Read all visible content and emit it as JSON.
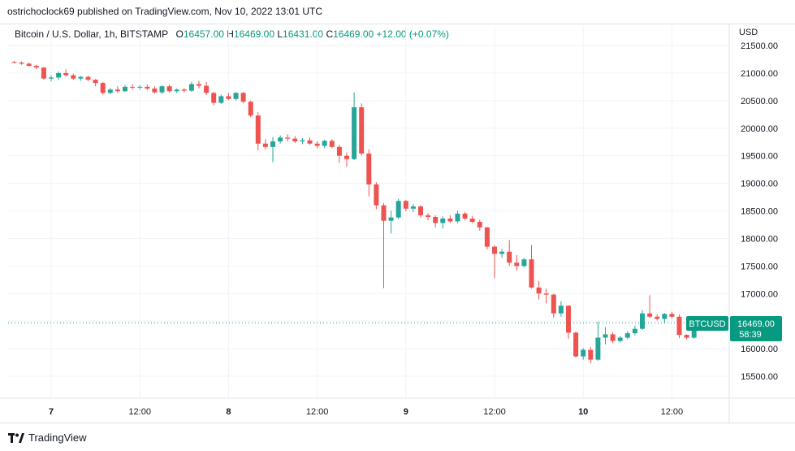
{
  "header": {
    "published": "ostrichoclock69 published on TradingView.com, Nov 10, 2022 13:01 UTC"
  },
  "legend": {
    "symbol": "Bitcoin / U.S. Dollar, 1h, BITSTAMP",
    "open_label": "O",
    "open": "16457.00",
    "high_label": "H",
    "high": "16469.00",
    "low_label": "L",
    "low": "16431.00",
    "close_label": "C",
    "close": "16469.00",
    "change": "+12.00 (+0.07%)"
  },
  "axis": {
    "currency": "USD"
  },
  "price_tag": {
    "symbol": "BTCUSD",
    "price": "16469.00",
    "countdown": "58:39"
  },
  "footer": {
    "brand": "TradingView"
  },
  "colors": {
    "up": "#26a69a",
    "down": "#ef5350",
    "grid": "#f0f3fa",
    "tag": "#089981"
  },
  "chart_data": {
    "type": "candlestick",
    "interval": "1h",
    "y_ticks": [
      15500,
      16000,
      16500,
      17000,
      17500,
      18000,
      18500,
      19000,
      19500,
      20000,
      20500,
      21000,
      21500
    ],
    "y_tick_labels": [
      "15500.00",
      "16000.00",
      "16500.00",
      "17000.00",
      "17500.00",
      "18000.00",
      "18500.00",
      "19000.00",
      "19500.00",
      "20000.00",
      "20500.00",
      "21000.00",
      "21500.00"
    ],
    "x_ticks": [
      {
        "label": "7",
        "i": 5
      },
      {
        "label": "12:00",
        "i": 17
      },
      {
        "label": "8",
        "i": 29
      },
      {
        "label": "12:00",
        "i": 41
      },
      {
        "label": "9",
        "i": 53
      },
      {
        "label": "12:00",
        "i": 65
      },
      {
        "label": "10",
        "i": 77
      },
      {
        "label": "12:00",
        "i": 89
      }
    ],
    "current_price": 16469,
    "candles": [
      [
        21200,
        21220,
        21180,
        21190
      ],
      [
        21190,
        21210,
        21150,
        21170
      ],
      [
        21170,
        21190,
        21120,
        21130
      ],
      [
        21130,
        21150,
        21070,
        21100
      ],
      [
        21100,
        21110,
        20880,
        20900
      ],
      [
        20900,
        20960,
        20850,
        20920
      ],
      [
        20920,
        21030,
        20870,
        21000
      ],
      [
        21000,
        21070,
        20940,
        20960
      ],
      [
        20960,
        20990,
        20880,
        20900
      ],
      [
        20900,
        20950,
        20860,
        20930
      ],
      [
        20930,
        20950,
        20850,
        20880
      ],
      [
        20880,
        20890,
        20760,
        20820
      ],
      [
        20820,
        20840,
        20610,
        20640
      ],
      [
        20640,
        20730,
        20620,
        20700
      ],
      [
        20700,
        20760,
        20640,
        20670
      ],
      [
        20670,
        20780,
        20660,
        20750
      ],
      [
        20750,
        20800,
        20700,
        20740
      ],
      [
        20740,
        20780,
        20700,
        20750
      ],
      [
        20750,
        20790,
        20690,
        20720
      ],
      [
        20720,
        20760,
        20630,
        20650
      ],
      [
        20650,
        20780,
        20620,
        20760
      ],
      [
        20760,
        20790,
        20650,
        20670
      ],
      [
        20670,
        20720,
        20640,
        20700
      ],
      [
        20700,
        20730,
        20650,
        20680
      ],
      [
        20680,
        20840,
        20660,
        20800
      ],
      [
        20800,
        20860,
        20720,
        20770
      ],
      [
        20770,
        20840,
        20600,
        20640
      ],
      [
        20640,
        20660,
        20420,
        20460
      ],
      [
        20460,
        20610,
        20440,
        20580
      ],
      [
        20580,
        20640,
        20510,
        20530
      ],
      [
        20530,
        20660,
        20500,
        20640
      ],
      [
        20640,
        20660,
        20450,
        20480
      ],
      [
        20480,
        20500,
        20200,
        20230
      ],
      [
        20230,
        20290,
        19600,
        19720
      ],
      [
        19720,
        19800,
        19620,
        19660
      ],
      [
        19660,
        19840,
        19380,
        19760
      ],
      [
        19760,
        19870,
        19720,
        19830
      ],
      [
        19830,
        19890,
        19760,
        19810
      ],
      [
        19810,
        19860,
        19730,
        19760
      ],
      [
        19760,
        19820,
        19710,
        19780
      ],
      [
        19780,
        19830,
        19700,
        19720
      ],
      [
        19720,
        19760,
        19640,
        19680
      ],
      [
        19680,
        19790,
        19640,
        19770
      ],
      [
        19770,
        19800,
        19640,
        19660
      ],
      [
        19660,
        19700,
        19370,
        19500
      ],
      [
        19500,
        19560,
        19300,
        19440
      ],
      [
        19440,
        20650,
        19420,
        20380
      ],
      [
        20380,
        20450,
        19500,
        19540
      ],
      [
        19540,
        19620,
        18760,
        18980
      ],
      [
        18980,
        19020,
        18530,
        18600
      ],
      [
        18600,
        18640,
        17100,
        18320
      ],
      [
        18320,
        18500,
        18090,
        18380
      ],
      [
        18380,
        18720,
        18350,
        18680
      ],
      [
        18680,
        18700,
        18490,
        18540
      ],
      [
        18540,
        18620,
        18480,
        18580
      ],
      [
        18580,
        18600,
        18380,
        18420
      ],
      [
        18420,
        18460,
        18330,
        18390
      ],
      [
        18390,
        18420,
        18200,
        18280
      ],
      [
        18280,
        18400,
        18180,
        18360
      ],
      [
        18360,
        18420,
        18280,
        18310
      ],
      [
        18310,
        18500,
        18280,
        18450
      ],
      [
        18450,
        18480,
        18330,
        18360
      ],
      [
        18360,
        18410,
        18280,
        18300
      ],
      [
        18300,
        18340,
        18140,
        18200
      ],
      [
        18200,
        18210,
        17800,
        17850
      ],
      [
        17850,
        17880,
        17280,
        17720
      ],
      [
        17720,
        17810,
        17650,
        17760
      ],
      [
        17760,
        17970,
        17500,
        17560
      ],
      [
        17560,
        17700,
        17420,
        17500
      ],
      [
        17500,
        17650,
        17470,
        17620
      ],
      [
        17620,
        17880,
        17090,
        17110
      ],
      [
        17110,
        17230,
        16890,
        17000
      ],
      [
        17000,
        17090,
        16820,
        16980
      ],
      [
        16980,
        17000,
        16560,
        16640
      ],
      [
        16640,
        16860,
        16580,
        16780
      ],
      [
        16780,
        16790,
        16180,
        16290
      ],
      [
        16290,
        16310,
        15840,
        15860
      ],
      [
        15860,
        16010,
        15800,
        15980
      ],
      [
        15980,
        16030,
        15740,
        15800
      ],
      [
        15800,
        16490,
        15780,
        16200
      ],
      [
        16200,
        16390,
        16080,
        16260
      ],
      [
        16260,
        16300,
        16100,
        16140
      ],
      [
        16140,
        16230,
        16110,
        16200
      ],
      [
        16200,
        16320,
        16170,
        16280
      ],
      [
        16280,
        16420,
        16240,
        16360
      ],
      [
        16360,
        16700,
        16340,
        16640
      ],
      [
        16640,
        16970,
        16560,
        16580
      ],
      [
        16580,
        16620,
        16510,
        16540
      ],
      [
        16540,
        16650,
        16460,
        16630
      ],
      [
        16630,
        16670,
        16550,
        16580
      ],
      [
        16580,
        16620,
        16190,
        16250
      ],
      [
        16250,
        16260,
        16170,
        16200
      ],
      [
        16200,
        16530,
        16180,
        16460
      ],
      [
        16457,
        16469,
        16431,
        16469
      ]
    ]
  }
}
